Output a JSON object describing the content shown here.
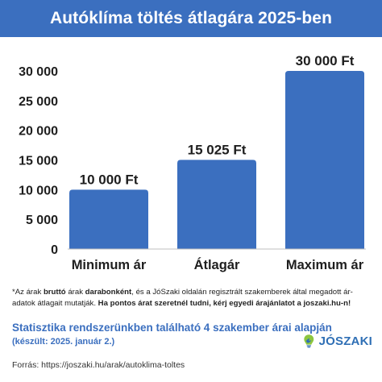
{
  "header": {
    "title": "Autóklíma töltés átlagára 2025-ben"
  },
  "colors": {
    "brand_blue": "#3b6fbf",
    "bar": "#3b6fbf",
    "logo_green": "#8dc63f"
  },
  "chart_data": {
    "type": "bar",
    "title": "Autóklíma töltés átlagára 2025-ben",
    "categories": [
      "Minimum ár",
      "Átlagár",
      "Maximum ár"
    ],
    "values": [
      10000,
      15025,
      30000
    ],
    "data_labels": [
      "10 000 Ft",
      "15 025 Ft",
      "30 000 Ft"
    ],
    "ylim": [
      0,
      30000
    ],
    "yticks": [
      0,
      5000,
      10000,
      15000,
      20000,
      25000,
      30000
    ],
    "ytick_labels": [
      "0",
      "5 000",
      "10 000",
      "15 000",
      "20 000",
      "25 000",
      "30 000"
    ],
    "xlabel": "",
    "ylabel": "",
    "grid": false,
    "legend": "none"
  },
  "footnote": {
    "p1": "*Az árak ",
    "b1": "bruttó",
    "p2": " árak ",
    "b2": "darabonként",
    "p3": ", és a JóSzaki oldalán regisztrált szakemberek által megadott ár-adatok átlagait mutatják. ",
    "b3": "Ha pontos árat szeretnél tudni, kérj egyedi árajánlatot a joszaki.hu-n!"
  },
  "stats": {
    "line1": "Statisztika rendszerünkben található 4 szakember árai alapján",
    "line2": "(készült: 2025. január 2.)"
  },
  "logo": {
    "text": "JÓSZAKI",
    "icon": "lightbulb-logo-icon"
  },
  "source": "Forrás: https://joszaki.hu/arak/autoklima-toltes"
}
